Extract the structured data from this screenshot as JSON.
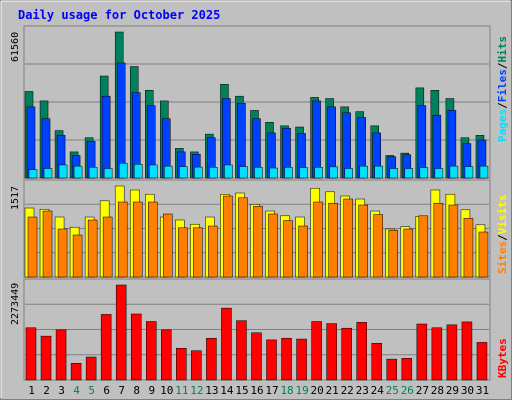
{
  "title": "Daily usage for October 2025",
  "colors": {
    "background": "#c0c0c0",
    "panel": "#c0c0c0",
    "grid": "#808080",
    "hits": "#00805c",
    "files": "#0040ff",
    "pages": "#00e0ff",
    "visits": "#ffff00",
    "sites": "#ff8000",
    "kbytes": "#ff0000",
    "title_text": "#0000ff",
    "weekend_text": "#00805c"
  },
  "panels": {
    "top": {
      "max_label": "61560",
      "legend": [
        "Pages",
        "/",
        "Files",
        "/",
        "Hits"
      ]
    },
    "middle": {
      "max_label": "1517",
      "legend": [
        "Sites",
        "/",
        "Visits"
      ]
    },
    "bottom": {
      "max_label": "2273449",
      "legend": [
        "KBytes"
      ]
    }
  },
  "chart_data": {
    "type": "bar",
    "categories": [
      "1",
      "2",
      "3",
      "4",
      "5",
      "6",
      "7",
      "8",
      "9",
      "10",
      "11",
      "12",
      "13",
      "14",
      "15",
      "16",
      "17",
      "18",
      "19",
      "20",
      "21",
      "22",
      "23",
      "24",
      "25",
      "26",
      "27",
      "28",
      "29",
      "30",
      "31"
    ],
    "weekend_days": [
      "4",
      "5",
      "11",
      "12",
      "18",
      "19",
      "25",
      "26"
    ],
    "series": [
      {
        "name": "Hits",
        "panel": "top",
        "values": [
          36500,
          32500,
          20000,
          11000,
          17000,
          43000,
          61560,
          47000,
          37000,
          32500,
          12500,
          11000,
          18500,
          39500,
          34500,
          28500,
          23500,
          22000,
          21500,
          34000,
          33500,
          30000,
          28000,
          22000,
          9500,
          10500,
          38000,
          37000,
          33500,
          17000,
          18000
        ]
      },
      {
        "name": "Files",
        "panel": "top",
        "values": [
          30000,
          25000,
          18000,
          9500,
          15500,
          34500,
          48500,
          36000,
          30500,
          25000,
          11000,
          10000,
          17000,
          33500,
          31500,
          25000,
          19000,
          21000,
          18800,
          32500,
          30000,
          27500,
          25500,
          19000,
          9000,
          9800,
          30500,
          26500,
          28500,
          14500,
          16000
        ]
      },
      {
        "name": "Pages",
        "panel": "top",
        "values": [
          3500,
          4000,
          5500,
          5000,
          4500,
          4000,
          6200,
          5800,
          5500,
          5000,
          4800,
          4600,
          4500,
          5500,
          4800,
          4500,
          4200,
          4500,
          4400,
          4500,
          4700,
          4000,
          5000,
          5000,
          4000,
          4000,
          4400,
          4000,
          5000,
          4800,
          5000
        ]
      },
      {
        "name": "Visits",
        "panel": "middle",
        "values": [
          1150,
          1130,
          1000,
          830,
          1000,
          1270,
          1517,
          1450,
          1380,
          1000,
          950,
          880,
          1000,
          1380,
          1400,
          1210,
          1100,
          1020,
          1000,
          1480,
          1420,
          1350,
          1300,
          1100,
          800,
          840,
          1010,
          1450,
          1380,
          1120,
          870
        ]
      },
      {
        "name": "Sites",
        "panel": "middle",
        "values": [
          1000,
          1100,
          800,
          700,
          950,
          1000,
          1250,
          1250,
          1250,
          1050,
          820,
          820,
          850,
          1350,
          1320,
          1180,
          1050,
          940,
          850,
          1250,
          1230,
          1300,
          1200,
          1040,
          780,
          800,
          1020,
          1230,
          1200,
          980,
          750
        ]
      },
      {
        "name": "KBytes",
        "panel": "bottom",
        "values": [
          1250000,
          1050000,
          1200000,
          400000,
          550000,
          1570000,
          2273449,
          1580000,
          1400000,
          1200000,
          760000,
          700000,
          1000000,
          1720000,
          1420000,
          1130000,
          960000,
          1000000,
          980000,
          1400000,
          1350000,
          1240000,
          1380000,
          880000,
          500000,
          520000,
          1340000,
          1250000,
          1320000,
          1390000,
          900000
        ]
      }
    ],
    "ylim": {
      "top": [
        0,
        61560
      ],
      "middle": [
        0,
        1517
      ],
      "bottom": [
        0,
        2273449
      ]
    },
    "grid": true
  }
}
